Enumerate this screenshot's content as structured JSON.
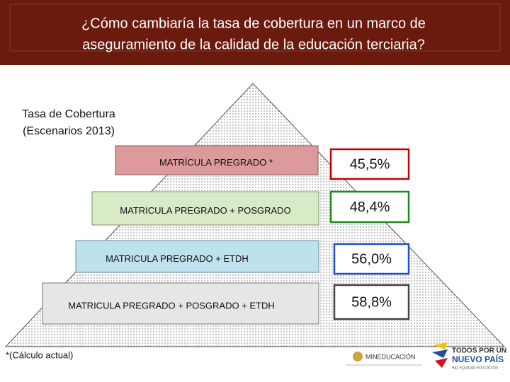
{
  "header": {
    "title_lines": [
      "¿Cómo cambiaría la tasa de cobertura en un marco de",
      "aseguramiento de la calidad de la educación terciaria?"
    ]
  },
  "side_label": [
    "Tasa de Cobertura",
    "(Escenarios 2013)"
  ],
  "levels": [
    {
      "label": "MATRÍCULA PREGRADO  *",
      "value": "45,5%"
    },
    {
      "label": "MATRICULA PREGRADO + POSGRADO",
      "value": "48,4%"
    },
    {
      "label": "MATRICULA PREGRADO + ETDH",
      "value": "56,0%"
    },
    {
      "label": "MATRICULA PREGRADO + POSGRADO + ETDH",
      "value": "58,8%"
    }
  ],
  "footnote": "*(Cálculo actual)",
  "logos": {
    "ministry": "MINEDUCACIÓN",
    "slogan_1": "TODOS POR UN",
    "slogan_2": "NUEVO PAÍS",
    "slogan_3": "PAZ  EQUIDAD  EDUCACIÓN"
  }
}
